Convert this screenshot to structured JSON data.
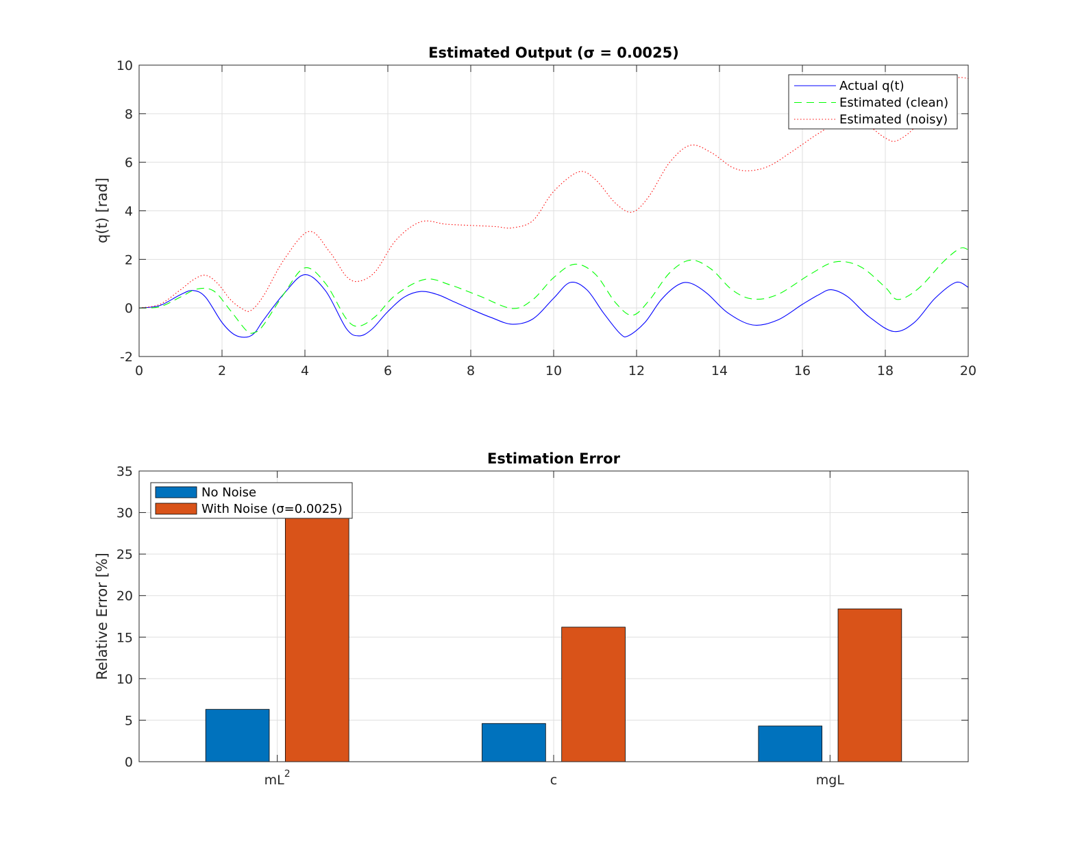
{
  "chart_data": [
    {
      "type": "line",
      "title": "Estimated Output (σ = 0.0025)",
      "xlabel": "",
      "ylabel": "q(t) [rad]",
      "xlim": [
        0,
        20
      ],
      "ylim": [
        -2,
        10
      ],
      "xticks": [
        0,
        2,
        4,
        6,
        8,
        10,
        12,
        14,
        16,
        18,
        20
      ],
      "yticks": [
        -2,
        0,
        2,
        4,
        6,
        8,
        10
      ],
      "grid": true,
      "legend_position": "top-right",
      "series": [
        {
          "name": "Actual q(t)",
          "color": "#0000ff",
          "style": "solid",
          "x": [
            0,
            0.5,
            1.0,
            1.3,
            1.6,
            2.0,
            2.3,
            2.6,
            2.8,
            3.0,
            3.5,
            4.0,
            4.5,
            5.0,
            5.3,
            5.6,
            6.0,
            6.4,
            6.8,
            7.2,
            7.6,
            8.0,
            8.5,
            9.0,
            9.5,
            10.0,
            10.4,
            10.8,
            11.2,
            11.6,
            11.8,
            12.2,
            12.6,
            13.0,
            13.3,
            13.7,
            14.2,
            14.8,
            15.4,
            16.0,
            16.4,
            16.7,
            17.1,
            17.6,
            18.2,
            18.7,
            19.2,
            19.7,
            20.0
          ],
          "values": [
            0,
            0.1,
            0.55,
            0.72,
            0.45,
            -0.6,
            -1.1,
            -1.2,
            -1.0,
            -0.5,
            0.6,
            1.37,
            0.7,
            -0.85,
            -1.15,
            -0.9,
            -0.15,
            0.45,
            0.68,
            0.55,
            0.25,
            -0.05,
            -0.4,
            -0.67,
            -0.45,
            0.4,
            1.05,
            0.75,
            -0.2,
            -1.05,
            -1.15,
            -0.6,
            0.35,
            0.95,
            1.02,
            0.6,
            -0.2,
            -0.7,
            -0.5,
            0.15,
            0.55,
            0.75,
            0.45,
            -0.35,
            -0.97,
            -0.6,
            0.4,
            1.05,
            0.85
          ]
        },
        {
          "name": "Estimated (clean)",
          "color": "#00ff00",
          "style": "dashed",
          "x": [
            0,
            0.5,
            1.0,
            1.4,
            1.8,
            2.2,
            2.6,
            2.8,
            3.0,
            3.5,
            4.0,
            4.5,
            5.0,
            5.3,
            5.7,
            6.2,
            6.9,
            7.5,
            8.2,
            9.0,
            9.5,
            10.0,
            10.5,
            11.0,
            11.5,
            11.9,
            12.3,
            12.8,
            13.3,
            13.8,
            14.3,
            14.8,
            15.4,
            16.2,
            16.8,
            17.4,
            18.0,
            18.3,
            18.8,
            19.4,
            19.8,
            20.0
          ],
          "values": [
            0,
            0.05,
            0.45,
            0.78,
            0.7,
            -0.1,
            -0.95,
            -1.0,
            -0.7,
            0.6,
            1.65,
            1.0,
            -0.45,
            -0.75,
            -0.35,
            0.55,
            1.18,
            0.95,
            0.5,
            -0.02,
            0.35,
            1.25,
            1.8,
            1.4,
            0.2,
            -0.3,
            0.3,
            1.45,
            1.97,
            1.6,
            0.75,
            0.37,
            0.55,
            1.4,
            1.9,
            1.7,
            0.85,
            0.35,
            0.8,
            1.9,
            2.45,
            2.4
          ]
        },
        {
          "name": "Estimated (noisy)",
          "color": "#ff0000",
          "style": "dotted",
          "x": [
            0,
            0.5,
            1.0,
            1.3,
            1.6,
            1.9,
            2.2,
            2.5,
            2.7,
            3.0,
            3.5,
            4.1,
            4.6,
            5.0,
            5.3,
            5.7,
            6.2,
            6.8,
            7.4,
            8.0,
            8.6,
            9.0,
            9.5,
            10.0,
            10.6,
            11.0,
            11.5,
            11.9,
            12.3,
            12.8,
            13.3,
            13.8,
            14.3,
            14.7,
            15.2,
            15.8,
            16.4,
            17.0,
            17.5,
            18.0,
            18.3,
            18.8,
            19.3,
            19.7,
            20.0
          ],
          "values": [
            0,
            0.15,
            0.75,
            1.15,
            1.35,
            1.0,
            0.35,
            -0.05,
            -0.1,
            0.5,
            2.0,
            3.15,
            2.3,
            1.3,
            1.1,
            1.5,
            2.8,
            3.55,
            3.45,
            3.4,
            3.35,
            3.3,
            3.6,
            4.8,
            5.6,
            5.3,
            4.3,
            3.95,
            4.6,
            6.0,
            6.7,
            6.4,
            5.8,
            5.65,
            5.85,
            6.5,
            7.2,
            7.75,
            7.6,
            7.0,
            6.9,
            7.6,
            8.9,
            9.45,
            9.45
          ]
        }
      ]
    },
    {
      "type": "bar",
      "title": "Estimation Error",
      "xlabel": "",
      "ylabel": "Relative Error [%]",
      "categories": [
        "mL",
        "c",
        "mgL"
      ],
      "category_superscripts": [
        "2",
        "",
        ""
      ],
      "ylim": [
        0,
        35
      ],
      "yticks": [
        0,
        5,
        10,
        15,
        20,
        25,
        30,
        35
      ],
      "grid": true,
      "legend_position": "top-left",
      "series": [
        {
          "name": "No Noise",
          "color": "#0072bd",
          "values": [
            6.3,
            4.6,
            4.3
          ]
        },
        {
          "name": "With Noise (σ=0.0025)",
          "color": "#d95319",
          "values": [
            30.5,
            16.2,
            18.4
          ]
        }
      ]
    }
  ]
}
